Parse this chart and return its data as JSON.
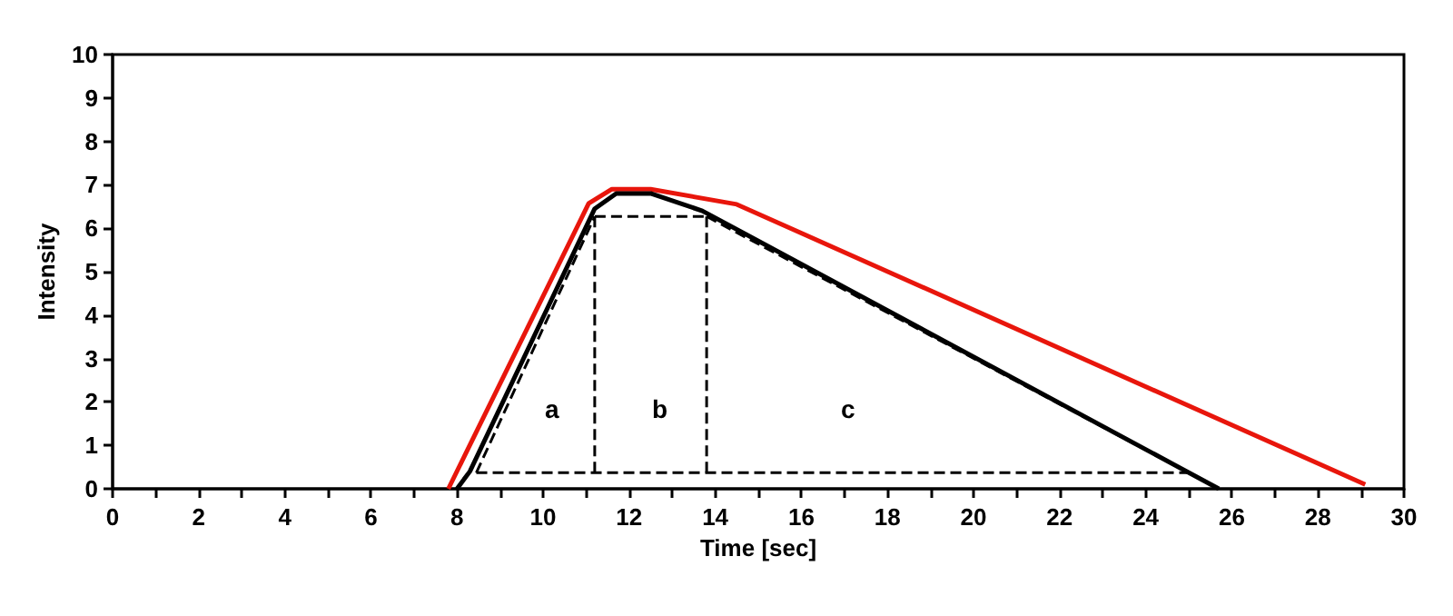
{
  "chart_data": {
    "type": "line",
    "xlabel": "Time [sec]",
    "ylabel": "Intensity",
    "xlim": [
      0,
      30
    ],
    "ylim": [
      0,
      10
    ],
    "xticks": [
      0,
      {
        "value": 1,
        "label": null
      },
      2,
      {
        "value": 3,
        "label": null
      },
      4,
      {
        "value": 5,
        "label": null
      },
      6,
      {
        "value": 7,
        "label": null
      },
      8,
      {
        "value": 9,
        "label": null
      },
      10,
      {
        "value": 11,
        "label": null
      },
      12,
      {
        "value": 13,
        "label": null
      },
      14,
      {
        "value": 15,
        "label": null
      },
      16,
      {
        "value": 17,
        "label": null
      },
      18,
      {
        "value": 19,
        "label": null
      },
      20,
      {
        "value": 21,
        "label": null
      },
      22,
      {
        "value": 23,
        "label": null
      },
      24,
      {
        "value": 25,
        "label": null
      },
      26,
      {
        "value": 27,
        "label": null
      },
      28,
      {
        "value": 29,
        "label": null
      },
      30
    ],
    "yticks": [
      0,
      1,
      2,
      3,
      4,
      5,
      6,
      7,
      8,
      9,
      10
    ],
    "marker": "none",
    "series": [
      {
        "color": "#e8160c",
        "line_style": "solid",
        "x": [
          7.8,
          11.06,
          11.6,
          12.5,
          14.5,
          29.1
        ],
        "values": [
          0,
          6.57,
          6.9,
          6.9,
          6.55,
          0.1
        ]
      },
      {
        "color": "#000000",
        "line_style": "solid",
        "x": [
          8.0,
          8.3,
          11.2,
          11.7,
          12.5,
          13.7,
          25.7
        ],
        "values": [
          0,
          0.4,
          6.45,
          6.8,
          6.8,
          6.4,
          0
        ]
      },
      {
        "color": "#000000",
        "line_style": "dashed",
        "x": [
          8.45,
          25.0
        ],
        "values": [
          0.37,
          0.37
        ]
      },
      {
        "color": "#000000",
        "line_style": "dashed",
        "x": [
          8.45,
          11.2
        ],
        "values": [
          0.37,
          6.27
        ]
      },
      {
        "color": "#000000",
        "line_style": "dashed",
        "x": [
          11.2,
          13.8
        ],
        "values": [
          6.27,
          6.27
        ]
      },
      {
        "color": "#000000",
        "line_style": "dashed",
        "x": [
          13.8,
          25.0
        ],
        "values": [
          6.27,
          0.37
        ]
      },
      {
        "color": "#000000",
        "line_style": "dashed",
        "x": [
          11.2,
          11.2
        ],
        "values": [
          0.37,
          6.27
        ]
      },
      {
        "color": "#000000",
        "line_style": "dashed",
        "x": [
          13.8,
          13.8
        ],
        "values": [
          0.37,
          6.27
        ]
      }
    ],
    "annotations": [
      "a",
      "b",
      "c"
    ]
  }
}
